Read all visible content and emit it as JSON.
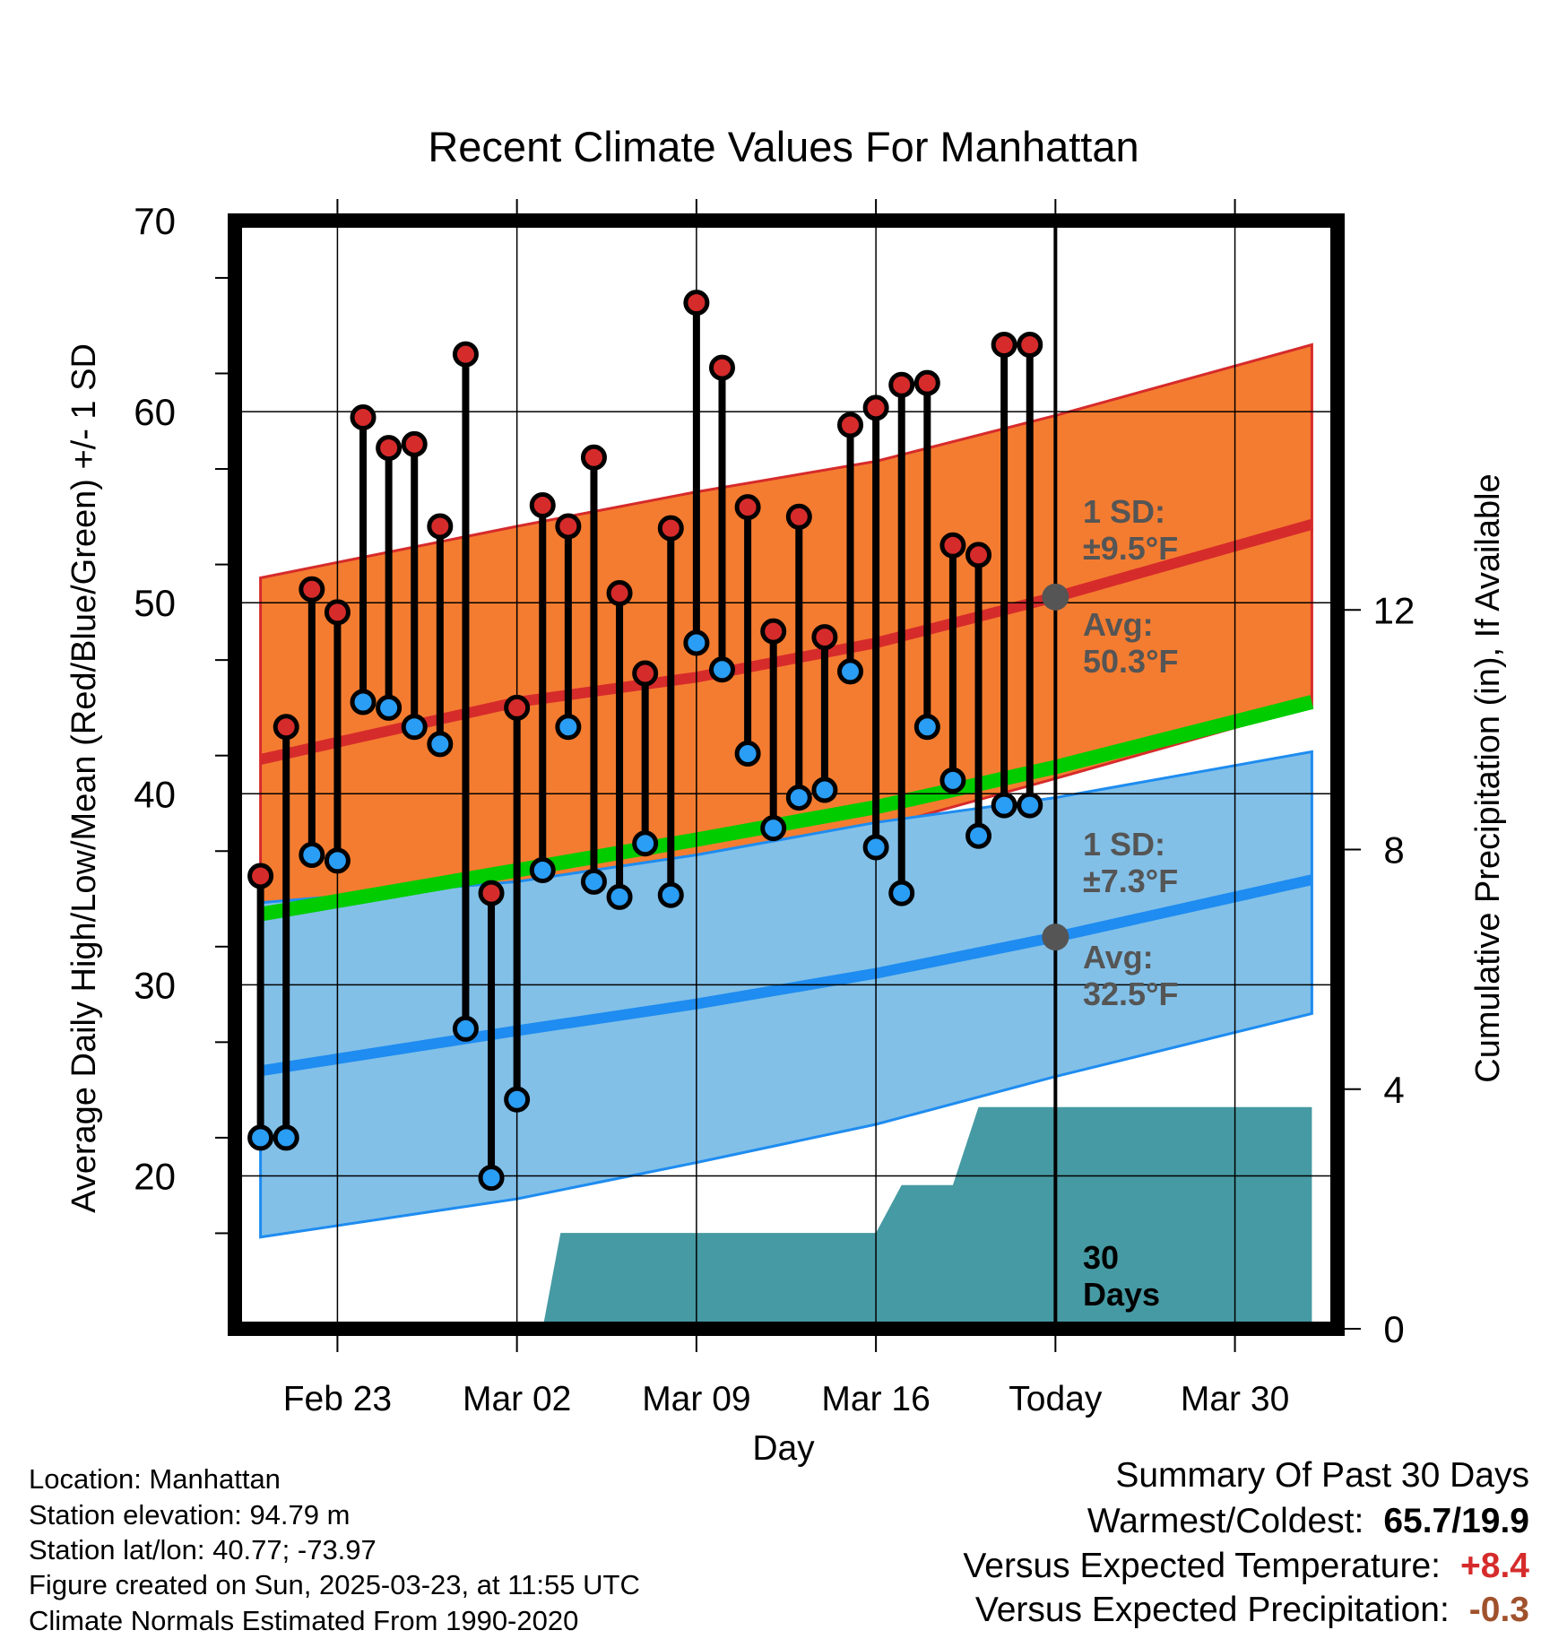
{
  "chart_data": {
    "type": "line",
    "title": "Recent Climate Values For Manhattan",
    "xlabel": "Day",
    "ylabel": "Average Daily High/Low/Mean (Red/Blue/Green) +/- 1 SD",
    "y2label": "Cumulative Precipitation (in), If Available",
    "ylim": [
      12,
      70
    ],
    "yticks": [
      20,
      30,
      40,
      50,
      60,
      70
    ],
    "y2lim": [
      0,
      18.5
    ],
    "y2ticks": [
      0,
      4,
      8,
      12
    ],
    "xlim": [
      "2025-02-19",
      "2025-04-03"
    ],
    "xticks": [
      {
        "date": "2025-02-23",
        "label": "Feb 23"
      },
      {
        "date": "2025-03-02",
        "label": "Mar 02"
      },
      {
        "date": "2025-03-09",
        "label": "Mar 09"
      },
      {
        "date": "2025-03-16",
        "label": "Mar 16"
      },
      {
        "date": "2025-03-23",
        "label": "Today"
      },
      {
        "date": "2025-03-30",
        "label": "Mar 30"
      }
    ],
    "grid": true,
    "dates": [
      "2025-02-20",
      "2025-02-21",
      "2025-02-22",
      "2025-02-23",
      "2025-02-24",
      "2025-02-25",
      "2025-02-26",
      "2025-02-27",
      "2025-02-28",
      "2025-03-01",
      "2025-03-02",
      "2025-03-03",
      "2025-03-04",
      "2025-03-05",
      "2025-03-06",
      "2025-03-07",
      "2025-03-08",
      "2025-03-09",
      "2025-03-10",
      "2025-03-11",
      "2025-03-12",
      "2025-03-13",
      "2025-03-14",
      "2025-03-15",
      "2025-03-16",
      "2025-03-17",
      "2025-03-18",
      "2025-03-19",
      "2025-03-20",
      "2025-03-21",
      "2025-03-22"
    ],
    "series": [
      {
        "name": "High",
        "values": [
          35.7,
          43.5,
          50.7,
          49.5,
          59.7,
          58.1,
          58.3,
          54.0,
          63.0,
          34.8,
          44.5,
          55.1,
          54.0,
          57.6,
          50.5,
          46.3,
          53.9,
          65.7,
          62.3,
          55.0,
          48.5,
          54.5,
          48.2,
          59.3,
          60.2,
          61.4,
          61.5,
          53.0,
          52.5,
          63.5,
          63.5
        ]
      },
      {
        "name": "Low",
        "values": [
          22.0,
          22.0,
          36.8,
          36.5,
          44.8,
          44.5,
          43.5,
          42.6,
          27.7,
          19.9,
          24.0,
          36.0,
          43.5,
          35.4,
          34.6,
          37.4,
          34.7,
          47.9,
          46.5,
          42.1,
          38.2,
          39.8,
          40.2,
          46.4,
          37.2,
          34.8,
          43.5,
          40.7,
          37.8,
          39.4,
          39.4
        ]
      }
    ],
    "normals": {
      "dates": [
        "2025-02-20",
        "2025-03-02",
        "2025-03-09",
        "2025-03-16",
        "2025-03-23",
        "2025-04-02"
      ],
      "high_avg": [
        41.8,
        44.8,
        46.1,
        47.9,
        50.3,
        54.1
      ],
      "high_upper": [
        51.3,
        54.0,
        55.8,
        57.4,
        59.8,
        63.5
      ],
      "high_lower": [
        32.8,
        35.0,
        36.5,
        38.2,
        40.8,
        44.6
      ],
      "low_avg": [
        25.5,
        27.6,
        29.0,
        30.6,
        32.5,
        35.5
      ],
      "low_upper": [
        34.3,
        35.4,
        36.8,
        38.5,
        39.8,
        42.2
      ],
      "low_lower": [
        16.8,
        18.8,
        20.7,
        22.7,
        25.2,
        28.5
      ],
      "mean": [
        33.7,
        36.0,
        37.6,
        39.3,
        41.4,
        44.8
      ]
    },
    "precip_cumulative": {
      "dates": [
        "2025-02-19",
        "2025-03-03",
        "2025-03-03.7",
        "2025-03-16",
        "2025-03-17",
        "2025-03-19",
        "2025-03-20",
        "2025-04-02"
      ],
      "values": [
        0,
        0,
        1.6,
        1.6,
        2.4,
        2.4,
        3.7,
        3.7
      ]
    },
    "annotations": {
      "high_sd": "1 SD:",
      "high_sd_value": "±9.5°F",
      "high_avg_label": "Avg:",
      "high_avg_value": "50.3°F",
      "low_sd": "1 SD:",
      "low_sd_value": "±7.3°F",
      "low_avg_label": "Avg:",
      "low_avg_value": "32.5°F",
      "period_line1": "30",
      "period_line2": "Days"
    },
    "colors": {
      "high_band": "#f47c30",
      "high_line": "#d62b2b",
      "low_band": "#82c0e8",
      "low_line": "#1e8cf0",
      "mean_line": "#00cc00",
      "precip": "#469aa3",
      "high_dot": "#d62b2b",
      "low_dot": "#2a9df4"
    }
  },
  "info": {
    "location": "Location: Manhattan",
    "elevation": "Station elevation: 94.79 m",
    "latlon": "Station lat/lon: 40.77; -73.97",
    "created": "Figure created on Sun, 2025-03-23, at 11:55 UTC",
    "normals": "Climate Normals Estimated From 1990-2020"
  },
  "summary": {
    "title": "Summary Of Past 30 Days",
    "warmest_label": "Warmest/Coldest:",
    "warmest_value": "65.7/19.9",
    "temp_label": "Versus Expected Temperature:",
    "temp_value": "+8.4",
    "temp_color": "#d62b2b",
    "precip_label": "Versus Expected Precipitation:",
    "precip_value": "-0.3",
    "precip_color": "#a0522d"
  }
}
